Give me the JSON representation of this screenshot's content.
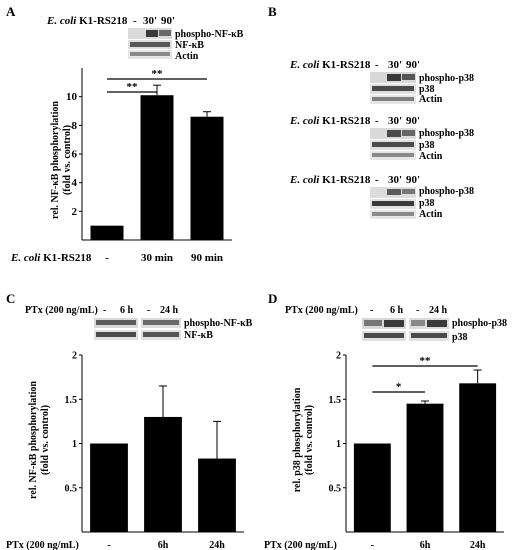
{
  "panels": [
    {
      "letter": "A",
      "blot_header": {
        "agent_italic": "E. coli",
        "agent": "K1-RS218",
        "lanes": [
          "-",
          "30'",
          "90'"
        ]
      },
      "blot_labels": [
        "phospho-NF-κB",
        "NF-κB",
        "Actin"
      ],
      "chart_data": {
        "type": "bar",
        "categories": [
          "-",
          "30 min",
          "90 min"
        ],
        "values": [
          1.0,
          10.1,
          8.6
        ],
        "errors": [
          0.0,
          0.7,
          0.35
        ],
        "ylabel_line1": "rel. NF-κB phosphorylation",
        "ylabel_line2": "(fold vs. control)",
        "xlabel_italic": "E. coli",
        "xlabel": "K1-RS218",
        "ylim": [
          0,
          12
        ],
        "yticks": [
          2,
          4,
          6,
          8,
          10
        ],
        "significance": [
          {
            "from": 0,
            "to": 1,
            "label": "**"
          },
          {
            "from": 0,
            "to": 2,
            "label": "**"
          }
        ],
        "grid": false
      }
    },
    {
      "letter": "B",
      "blots": [
        {
          "agent_italic": "E. coli",
          "agent": "K1-RS218",
          "lanes": [
            "-",
            "30'",
            "90'"
          ],
          "labels": [
            "phospho-p38",
            "p38",
            "Actin"
          ]
        },
        {
          "agent_italic": "E. coli",
          "agent": "K1-RS218",
          "lanes": [
            "-",
            "30'",
            "90'"
          ],
          "labels": [
            "phospho-p38",
            "p38",
            "Actin"
          ]
        },
        {
          "agent_italic": "E. coli",
          "agent": "K1-RS218",
          "lanes": [
            "-",
            "30'",
            "90'"
          ],
          "labels": [
            "phospho-p38",
            "p38",
            "Actin"
          ]
        }
      ]
    },
    {
      "letter": "C",
      "blot_header": {
        "agent": "PTx (200 ng/mL)",
        "lanes": [
          "-",
          "6 h",
          "-",
          "24 h"
        ]
      },
      "blot_labels": [
        "phospho-NF-κB",
        "NF-κB"
      ],
      "chart_data": {
        "type": "bar",
        "categories": [
          "-",
          "6h",
          "24h"
        ],
        "values": [
          1.0,
          1.3,
          0.83
        ],
        "errors": [
          0.0,
          0.35,
          0.42
        ],
        "ylabel_line1": "rel. NF-κB phosphorylation",
        "ylabel_line2": "(fold vs. control)",
        "xlabel": "PTx (200 ng/mL)",
        "ylim": [
          0,
          2
        ],
        "yticks": [
          0.5,
          1,
          1.5,
          2
        ],
        "yticklabels": [
          "0.5",
          "1",
          "1.5",
          "2"
        ],
        "significance": [],
        "grid": false
      }
    },
    {
      "letter": "D",
      "blot_header": {
        "agent": "PTx (200 ng/mL)",
        "lanes": [
          "-",
          "6 h",
          "-",
          "24 h"
        ]
      },
      "blot_labels": [
        "phospho-p38",
        "p38"
      ],
      "chart_data": {
        "type": "bar",
        "categories": [
          "-",
          "6h",
          "24h"
        ],
        "values": [
          1.0,
          1.45,
          1.68
        ],
        "errors": [
          0.0,
          0.03,
          0.15
        ],
        "ylabel_line1": "rel. p38 phosphorylation",
        "ylabel_line2": "(fold vs. control)",
        "xlabel": "PTx (200 ng/mL)",
        "ylim": [
          0,
          2
        ],
        "yticks": [
          0.5,
          1,
          1.5,
          2
        ],
        "yticklabels": [
          "0.5",
          "1",
          "1.5",
          "2"
        ],
        "significance": [
          {
            "from": 0,
            "to": 1,
            "label": "*"
          },
          {
            "from": 0,
            "to": 2,
            "label": "**"
          }
        ],
        "grid": false
      }
    }
  ]
}
